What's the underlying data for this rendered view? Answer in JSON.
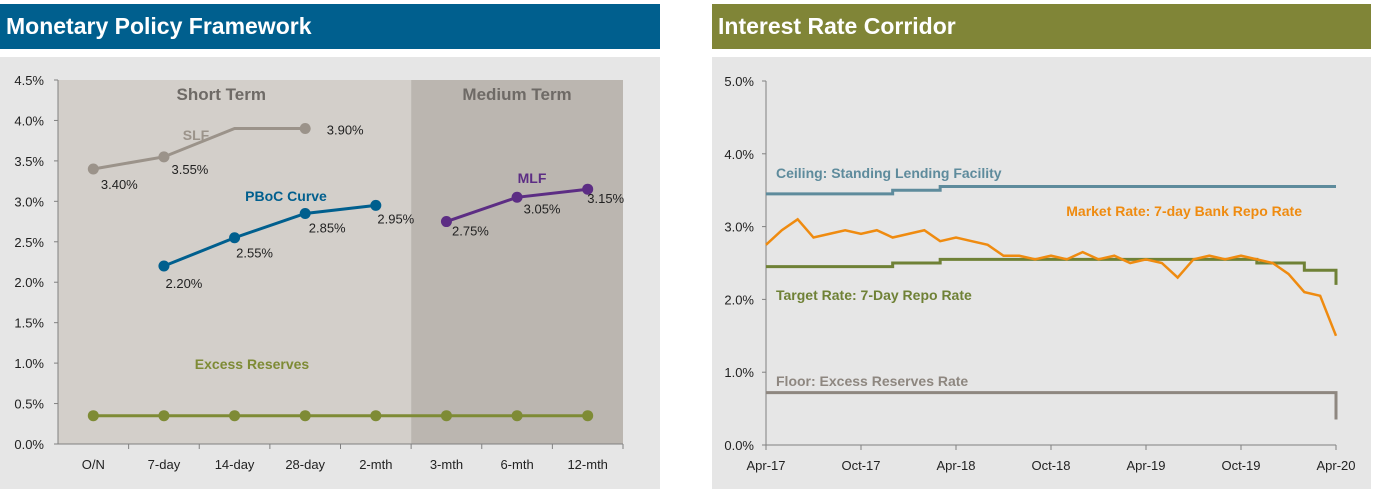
{
  "left_panel": {
    "title": "Monetary Policy Framework",
    "title_color": "#005f8e",
    "regions": {
      "short_term": "Short Term",
      "medium_term": "Medium Term"
    },
    "chart_data": {
      "type": "line",
      "title": "Monetary Policy Framework",
      "categories": [
        "O/N",
        "7-day",
        "14-day",
        "28-day",
        "2-mth",
        "3-mth",
        "6-mth",
        "12-mth"
      ],
      "ylim": [
        0,
        4.5
      ],
      "y_ticks": [
        "0.0%",
        "0.5%",
        "1.0%",
        "1.5%",
        "2.0%",
        "2.5%",
        "3.0%",
        "3.5%",
        "4.0%",
        "4.5%"
      ],
      "series": [
        {
          "name": "SLF",
          "color": "#9b938a",
          "x": [
            0,
            1,
            2,
            3
          ],
          "values": [
            3.4,
            3.55,
            3.9,
            3.9
          ],
          "markers": [
            0,
            1,
            3
          ],
          "labels": [
            "3.40%",
            "3.55%",
            "3.90%"
          ]
        },
        {
          "name": "PBoC Curve",
          "color": "#005f8e",
          "x": [
            1,
            2,
            3,
            4
          ],
          "values": [
            2.2,
            2.55,
            2.85,
            2.95
          ],
          "labels": [
            "2.20%",
            "2.55%",
            "2.85%",
            "2.95%"
          ]
        },
        {
          "name": "MLF",
          "color": "#5c2d84",
          "x": [
            5,
            6,
            7
          ],
          "values": [
            2.75,
            3.05,
            3.15
          ],
          "labels": [
            "2.75%",
            "3.05%",
            "3.15%"
          ]
        },
        {
          "name": "Excess Reserves",
          "color": "#7e8b35",
          "x": [
            0,
            1,
            2,
            3,
            4,
            5,
            6,
            7
          ],
          "values": [
            0.35,
            0.35,
            0.35,
            0.35,
            0.35,
            0.35,
            0.35,
            0.35
          ]
        }
      ],
      "short_term_color": "#d3cfca",
      "medium_term_color": "#bbb6b0"
    }
  },
  "right_panel": {
    "title": "Interest Rate Corridor",
    "title_color": "#808537",
    "chart_data": {
      "type": "line",
      "title": "Interest Rate Corridor",
      "xlim": [
        "2017-04",
        "2020-04"
      ],
      "x_ticks": [
        "Apr-17",
        "Oct-17",
        "Apr-18",
        "Oct-18",
        "Apr-19",
        "Oct-19",
        "Apr-20"
      ],
      "ylim": [
        0,
        5.0
      ],
      "y_ticks": [
        "0.0%",
        "1.0%",
        "2.0%",
        "3.0%",
        "4.0%",
        "5.0%"
      ],
      "series": [
        {
          "name": "Ceiling: Standing Lending Facility",
          "color": "#5e8b9c",
          "steps": [
            [
              "2017-04",
              3.45
            ],
            [
              "2017-12",
              3.5
            ],
            [
              "2018-03",
              3.55
            ],
            [
              "2020-04",
              3.55
            ]
          ]
        },
        {
          "name": "Target Rate: 7-Day Repo Rate",
          "color": "#6f8136",
          "steps": [
            [
              "2017-04",
              2.45
            ],
            [
              "2017-12",
              2.5
            ],
            [
              "2018-03",
              2.55
            ],
            [
              "2019-11",
              2.5
            ],
            [
              "2020-02",
              2.4
            ],
            [
              "2020-04",
              2.2
            ]
          ]
        },
        {
          "name": "Floor: Excess Reserves Rate",
          "color": "#8e8780",
          "steps": [
            [
              "2017-04",
              0.72
            ],
            [
              "2020-04",
              0.72
            ],
            [
              "2020-04",
              0.35
            ]
          ]
        },
        {
          "name": "Market Rate: 7-day Bank Repo Rate",
          "color": "#ef8b10",
          "points": [
            [
              "2017-04",
              2.75
            ],
            [
              "2017-05",
              2.95
            ],
            [
              "2017-06",
              3.1
            ],
            [
              "2017-07",
              2.85
            ],
            [
              "2017-08",
              2.9
            ],
            [
              "2017-09",
              2.95
            ],
            [
              "2017-10",
              2.9
            ],
            [
              "2017-11",
              2.95
            ],
            [
              "2017-12",
              2.85
            ],
            [
              "2018-01",
              2.9
            ],
            [
              "2018-02",
              2.95
            ],
            [
              "2018-03",
              2.8
            ],
            [
              "2018-04",
              2.85
            ],
            [
              "2018-05",
              2.8
            ],
            [
              "2018-06",
              2.75
            ],
            [
              "2018-07",
              2.6
            ],
            [
              "2018-08",
              2.6
            ],
            [
              "2018-09",
              2.55
            ],
            [
              "2018-10",
              2.6
            ],
            [
              "2018-11",
              2.55
            ],
            [
              "2018-12",
              2.65
            ],
            [
              "2019-01",
              2.55
            ],
            [
              "2019-02",
              2.6
            ],
            [
              "2019-03",
              2.5
            ],
            [
              "2019-04",
              2.55
            ],
            [
              "2019-05",
              2.5
            ],
            [
              "2019-06",
              2.3
            ],
            [
              "2019-07",
              2.55
            ],
            [
              "2019-08",
              2.6
            ],
            [
              "2019-09",
              2.55
            ],
            [
              "2019-10",
              2.6
            ],
            [
              "2019-11",
              2.55
            ],
            [
              "2019-12",
              2.5
            ],
            [
              "2020-01",
              2.35
            ],
            [
              "2020-02",
              2.1
            ],
            [
              "2020-03",
              2.05
            ],
            [
              "2020-04",
              1.5
            ]
          ]
        }
      ]
    }
  }
}
